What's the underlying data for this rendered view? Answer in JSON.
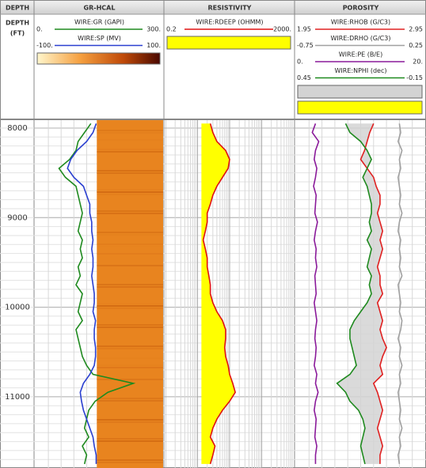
{
  "chart_data": {
    "type": "well-log",
    "depth_title": "DEPTH",
    "y_label": "DEPTH",
    "y_unit": "(FT)",
    "ylim": [
      7912,
      11795
    ],
    "yticks": [
      8000,
      9000,
      10000,
      11000
    ],
    "grid": true,
    "depth": [
      7950,
      8050,
      8150,
      8250,
      8350,
      8450,
      8550,
      8650,
      8750,
      8850,
      8950,
      9050,
      9150,
      9250,
      9350,
      9450,
      9550,
      9650,
      9750,
      9850,
      9950,
      10050,
      10150,
      10250,
      10350,
      10450,
      10550,
      10650,
      10750,
      10850,
      10950,
      11050,
      11150,
      11250,
      11350,
      11450,
      11550,
      11650,
      11750
    ],
    "tracks": [
      {
        "title": "GR-HCAL",
        "background": "#e8841f",
        "curves": [
          {
            "name": "WIRE:GR (GAPI)",
            "color": "#1f8a1f",
            "scale": [
              {
                "value": 0,
                "label": "0."
              },
              {
                "value": 300,
                "label": "300."
              }
            ],
            "values": [
              130,
              115,
              100,
              95,
              80,
              55,
              70,
              95,
              100,
              105,
              110,
              105,
              100,
              110,
              105,
              110,
              100,
              105,
              95,
              110,
              105,
              100,
              110,
              95,
              100,
              105,
              110,
              120,
              135,
              230,
              170,
              140,
              125,
              120,
              115,
              125,
              110,
              120,
              115
            ]
          },
          {
            "name": "WIRE:SP (MV)",
            "color": "#2a3fd0",
            "scale": [
              {
                "value": -100,
                "label": "-100."
              },
              {
                "value": 100,
                "label": "100."
              }
            ],
            "values": [
              -5,
              -10,
              -20,
              -35,
              -45,
              -50,
              -40,
              -25,
              -20,
              -15,
              -15,
              -12,
              -12,
              -10,
              -12,
              -10,
              -10,
              -12,
              -10,
              -8,
              -8,
              -10,
              -6,
              -8,
              -8,
              -6,
              -6,
              -8,
              -15,
              -25,
              -30,
              -28,
              -25,
              -20,
              -15,
              -10,
              -8,
              -5,
              -5
            ]
          }
        ]
      },
      {
        "title": "RESISTIVITY",
        "log_scale": true,
        "curves": [
          {
            "name": "WIRE:RDEEP (OHMM)",
            "color": "#e01010",
            "fill_color": "#ffff00",
            "scale": [
              0.2,
              {
                "value": 2000,
                "label": "2000."
              }
            ],
            "values": [
              5,
              6,
              8,
              15,
              20,
              18,
              12,
              8,
              6,
              5,
              4,
              4,
              3.5,
              3,
              3.5,
              4,
              4,
              4.5,
              5,
              5,
              6,
              8,
              12,
              15,
              15,
              14,
              15,
              18,
              20,
              25,
              30,
              20,
              12,
              8,
              6,
              5,
              7,
              6,
              5
            ]
          }
        ]
      },
      {
        "title": "POROSITY",
        "fill_color": "#d3d3d3",
        "crossover_color": "#ffff00",
        "curves": [
          {
            "name": "WIRE:RHOB (G/C3)",
            "color": "#e02020",
            "scale": [
              1.95,
              2.95
            ],
            "values": [
              2.55,
              2.52,
              2.5,
              2.48,
              2.45,
              2.5,
              2.55,
              2.57,
              2.6,
              2.6,
              2.58,
              2.6,
              2.62,
              2.6,
              2.62,
              2.6,
              2.58,
              2.6,
              2.6,
              2.62,
              2.58,
              2.6,
              2.62,
              2.6,
              2.62,
              2.65,
              2.62,
              2.6,
              2.62,
              2.55,
              2.58,
              2.6,
              2.62,
              2.6,
              2.58,
              2.6,
              2.62,
              2.6,
              2.6
            ]
          },
          {
            "name": "WIRE:DRHO (G/C3)",
            "color": "#a0a0a0",
            "scale": [
              -0.75,
              0.25
            ],
            "values": [
              0.05,
              0.06,
              0.04,
              0.07,
              0.05,
              0.06,
              0.04,
              0.05,
              0.06,
              0.05,
              0.07,
              0.05,
              0.04,
              0.06,
              0.05,
              0.06,
              0.05,
              0.07,
              0.04,
              0.05,
              0.06,
              0.05,
              0.07,
              0.06,
              0.04,
              0.06,
              0.05,
              0.07,
              0.05,
              0.06,
              0.04,
              0.05,
              0.06,
              0.05,
              0.07,
              0.05,
              0.06,
              0.04,
              0.05
            ]
          },
          {
            "name": "WIRE:PE (B/E)",
            "color": "#8a1a9a",
            "scale": [
              {
                "value": 0,
                "label": "0."
              },
              {
                "value": 20,
                "label": "20."
              }
            ],
            "values": [
              3,
              2.5,
              3.5,
              3,
              2.8,
              3.2,
              3,
              2.7,
              3.1,
              3,
              2.9,
              3.3,
              3,
              2.8,
              3.1,
              3,
              3.2,
              2.9,
              3,
              3.1,
              2.8,
              3,
              3.2,
              3,
              2.9,
              3.1,
              3,
              2.8,
              3.2,
              3,
              3.4,
              3,
              2.8,
              3.1,
              3,
              2.9,
              3.2,
              3,
              3
            ]
          },
          {
            "name": "WIRE:NPHI (dec)",
            "color": "#1f8a1f",
            "scale": [
              0.45,
              -0.15
            ],
            "values": [
              0.22,
              0.2,
              0.15,
              0.12,
              0.1,
              0.12,
              0.14,
              0.12,
              0.11,
              0.1,
              0.1,
              0.11,
              0.1,
              0.12,
              0.1,
              0.11,
              0.12,
              0.1,
              0.11,
              0.1,
              0.12,
              0.15,
              0.18,
              0.2,
              0.2,
              0.19,
              0.18,
              0.17,
              0.2,
              0.26,
              0.22,
              0.2,
              0.16,
              0.14,
              0.13,
              0.14,
              0.15,
              0.14,
              0.13
            ]
          }
        ]
      }
    ]
  }
}
